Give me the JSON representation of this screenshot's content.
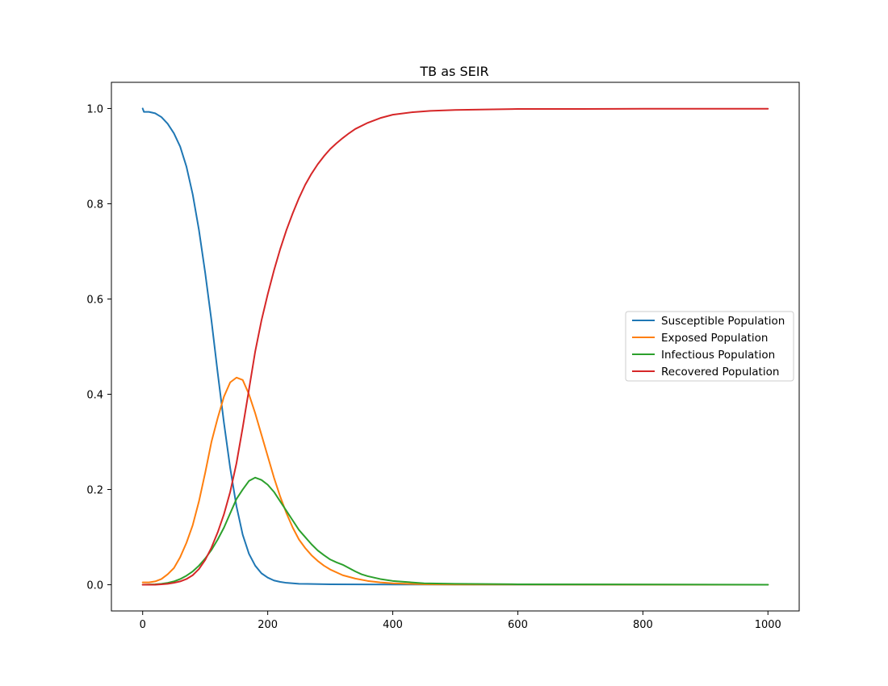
{
  "chart_data": {
    "type": "line",
    "title": "TB as SEIR",
    "xlabel": "",
    "ylabel": "",
    "xlim": [
      -50,
      1050
    ],
    "ylim": [
      -0.055,
      1.055
    ],
    "x_ticks": [
      0,
      200,
      400,
      600,
      800,
      1000
    ],
    "x_tick_labels": [
      "0",
      "200",
      "400",
      "600",
      "800",
      "1000"
    ],
    "y_ticks": [
      0.0,
      0.2,
      0.4,
      0.6,
      0.8,
      1.0
    ],
    "y_tick_labels": [
      "0.0",
      "0.2",
      "0.4",
      "0.6",
      "0.8",
      "1.0"
    ],
    "grid": false,
    "legend_position": "center-right",
    "series": [
      {
        "name": "Susceptible Population",
        "color": "#1f77b4",
        "points": [
          [
            0,
            1.0
          ],
          [
            2,
            0.993
          ],
          [
            10,
            0.993
          ],
          [
            20,
            0.99
          ],
          [
            30,
            0.982
          ],
          [
            40,
            0.968
          ],
          [
            50,
            0.948
          ],
          [
            60,
            0.92
          ],
          [
            70,
            0.878
          ],
          [
            80,
            0.82
          ],
          [
            90,
            0.745
          ],
          [
            100,
            0.655
          ],
          [
            110,
            0.555
          ],
          [
            120,
            0.445
          ],
          [
            130,
            0.34
          ],
          [
            140,
            0.245
          ],
          [
            150,
            0.165
          ],
          [
            160,
            0.105
          ],
          [
            170,
            0.065
          ],
          [
            180,
            0.04
          ],
          [
            190,
            0.024
          ],
          [
            200,
            0.015
          ],
          [
            210,
            0.009
          ],
          [
            220,
            0.006
          ],
          [
            230,
            0.004
          ],
          [
            250,
            0.002
          ],
          [
            300,
            0.001
          ],
          [
            400,
            0.0005
          ],
          [
            600,
            0.0002
          ],
          [
            1000,
            0.0001
          ]
        ]
      },
      {
        "name": "Exposed Population",
        "color": "#ff7f0e",
        "points": [
          [
            0,
            0.005
          ],
          [
            10,
            0.005
          ],
          [
            20,
            0.007
          ],
          [
            30,
            0.012
          ],
          [
            40,
            0.022
          ],
          [
            50,
            0.035
          ],
          [
            60,
            0.058
          ],
          [
            70,
            0.088
          ],
          [
            80,
            0.125
          ],
          [
            90,
            0.175
          ],
          [
            100,
            0.235
          ],
          [
            110,
            0.3
          ],
          [
            120,
            0.35
          ],
          [
            130,
            0.395
          ],
          [
            140,
            0.425
          ],
          [
            150,
            0.435
          ],
          [
            160,
            0.43
          ],
          [
            170,
            0.4
          ],
          [
            180,
            0.36
          ],
          [
            190,
            0.315
          ],
          [
            200,
            0.27
          ],
          [
            210,
            0.225
          ],
          [
            220,
            0.185
          ],
          [
            230,
            0.15
          ],
          [
            240,
            0.12
          ],
          [
            250,
            0.095
          ],
          [
            260,
            0.077
          ],
          [
            270,
            0.062
          ],
          [
            280,
            0.05
          ],
          [
            290,
            0.04
          ],
          [
            300,
            0.032
          ],
          [
            320,
            0.02
          ],
          [
            340,
            0.013
          ],
          [
            360,
            0.008
          ],
          [
            380,
            0.005
          ],
          [
            400,
            0.003
          ],
          [
            450,
            0.001
          ],
          [
            500,
            0.0005
          ],
          [
            1000,
            0.0
          ]
        ]
      },
      {
        "name": "Infectious Population",
        "color": "#2ca02c",
        "points": [
          [
            0,
            0.0
          ],
          [
            20,
            0.001
          ],
          [
            30,
            0.002
          ],
          [
            40,
            0.004
          ],
          [
            50,
            0.007
          ],
          [
            60,
            0.012
          ],
          [
            70,
            0.019
          ],
          [
            80,
            0.028
          ],
          [
            90,
            0.04
          ],
          [
            100,
            0.055
          ],
          [
            110,
            0.073
          ],
          [
            120,
            0.095
          ],
          [
            130,
            0.12
          ],
          [
            140,
            0.15
          ],
          [
            150,
            0.18
          ],
          [
            160,
            0.2
          ],
          [
            170,
            0.218
          ],
          [
            180,
            0.225
          ],
          [
            190,
            0.22
          ],
          [
            200,
            0.21
          ],
          [
            210,
            0.195
          ],
          [
            220,
            0.175
          ],
          [
            230,
            0.155
          ],
          [
            240,
            0.135
          ],
          [
            250,
            0.115
          ],
          [
            260,
            0.1
          ],
          [
            270,
            0.085
          ],
          [
            280,
            0.072
          ],
          [
            290,
            0.062
          ],
          [
            300,
            0.053
          ],
          [
            310,
            0.047
          ],
          [
            320,
            0.042
          ],
          [
            330,
            0.035
          ],
          [
            340,
            0.028
          ],
          [
            350,
            0.022
          ],
          [
            360,
            0.018
          ],
          [
            380,
            0.012
          ],
          [
            400,
            0.008
          ],
          [
            420,
            0.006
          ],
          [
            450,
            0.003
          ],
          [
            500,
            0.002
          ],
          [
            600,
            0.001
          ],
          [
            1000,
            0.0
          ]
        ]
      },
      {
        "name": "Recovered Population",
        "color": "#d62728",
        "points": [
          [
            0,
            0.0
          ],
          [
            20,
            0.0
          ],
          [
            30,
            0.001
          ],
          [
            40,
            0.002
          ],
          [
            50,
            0.004
          ],
          [
            60,
            0.007
          ],
          [
            70,
            0.012
          ],
          [
            80,
            0.02
          ],
          [
            90,
            0.033
          ],
          [
            100,
            0.052
          ],
          [
            110,
            0.078
          ],
          [
            120,
            0.11
          ],
          [
            130,
            0.148
          ],
          [
            140,
            0.195
          ],
          [
            150,
            0.255
          ],
          [
            160,
            0.33
          ],
          [
            170,
            0.41
          ],
          [
            180,
            0.49
          ],
          [
            190,
            0.555
          ],
          [
            200,
            0.61
          ],
          [
            210,
            0.66
          ],
          [
            220,
            0.705
          ],
          [
            230,
            0.745
          ],
          [
            240,
            0.78
          ],
          [
            250,
            0.812
          ],
          [
            260,
            0.84
          ],
          [
            270,
            0.863
          ],
          [
            280,
            0.883
          ],
          [
            290,
            0.9
          ],
          [
            300,
            0.915
          ],
          [
            310,
            0.927
          ],
          [
            320,
            0.938
          ],
          [
            330,
            0.948
          ],
          [
            340,
            0.957
          ],
          [
            360,
            0.97
          ],
          [
            380,
            0.98
          ],
          [
            400,
            0.987
          ],
          [
            430,
            0.992
          ],
          [
            460,
            0.995
          ],
          [
            500,
            0.997
          ],
          [
            550,
            0.998
          ],
          [
            600,
            0.999
          ],
          [
            700,
            0.999
          ],
          [
            800,
            0.9995
          ],
          [
            1000,
            0.9995
          ]
        ]
      }
    ]
  }
}
